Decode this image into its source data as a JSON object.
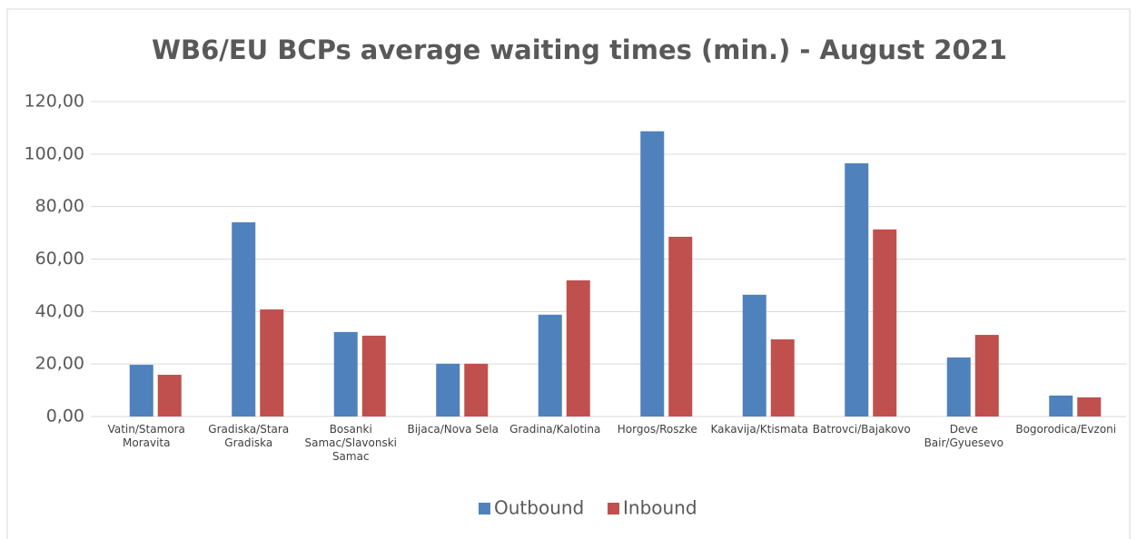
{
  "chart_data": {
    "type": "bar",
    "title": "WB6/EU BCPs average waiting times (min.) - August 2021",
    "categories": [
      "Vatin/Stamora Moravita",
      "Gradiska/Stara Gradiska",
      "Bosanki Samac/Slavonski Samac",
      "Bijaca/Nova Sela",
      "Gradina/Kalotina",
      "Horgos/Roszke",
      "Kakavija/Ktismata",
      "Batrovci/Bajakovo",
      "Deve Bair/Gyuesevo",
      "Bogorodica/Evzoni"
    ],
    "series": [
      {
        "name": "Outbound",
        "color": "#4f81bd",
        "values": [
          19.7,
          74.0,
          32.2,
          20.1,
          38.8,
          108.7,
          46.4,
          96.5,
          22.5,
          8.0
        ]
      },
      {
        "name": "Inbound",
        "color": "#c0504d",
        "values": [
          15.9,
          40.8,
          30.8,
          20.1,
          51.9,
          68.5,
          29.4,
          71.3,
          31.1,
          7.3
        ]
      }
    ],
    "ylim": [
      0,
      120
    ],
    "yticks": [
      {
        "value": 0,
        "label": "0,00"
      },
      {
        "value": 20,
        "label": "20,00"
      },
      {
        "value": 40,
        "label": "40,00"
      },
      {
        "value": 60,
        "label": "60,00"
      },
      {
        "value": 80,
        "label": "80,00"
      },
      {
        "value": 100,
        "label": "100,00"
      },
      {
        "value": 120,
        "label": "120,00"
      }
    ],
    "grid": true,
    "legend": "bottom"
  }
}
